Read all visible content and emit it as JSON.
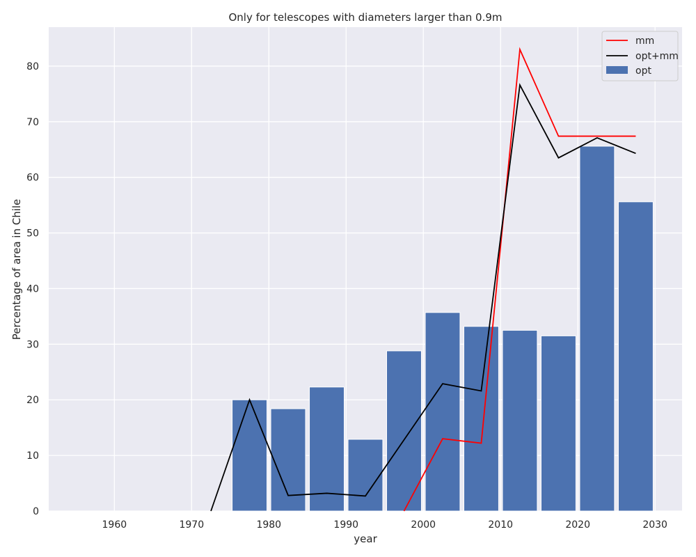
{
  "chart_data": {
    "type": "bar",
    "title": "Only for telescopes with diameters larger than 0.9m",
    "xlabel": "year",
    "ylabel": "Percentage of area in Chile",
    "xlim": [
      1951.5,
      2033.5
    ],
    "ylim": [
      0,
      87
    ],
    "xticks": [
      1960,
      1970,
      1980,
      1990,
      2000,
      2010,
      2020,
      2030
    ],
    "yticks": [
      0,
      10,
      20,
      30,
      40,
      50,
      60,
      70,
      80
    ],
    "grid": true,
    "legend_position": "top-right",
    "bar_width_years": 4.5,
    "bars": {
      "name": "opt",
      "color": "#4c72b0",
      "x": [
        1957.5,
        1962.5,
        1967.5,
        1972.5,
        1977.5,
        1982.5,
        1987.5,
        1992.5,
        1997.5,
        2002.5,
        2007.5,
        2012.5,
        2017.5,
        2022.5,
        2027.5
      ],
      "values": [
        0,
        0,
        0,
        0,
        20.0,
        18.4,
        22.3,
        12.9,
        28.8,
        35.7,
        33.2,
        32.5,
        31.5,
        65.6,
        55.6
      ]
    },
    "series": [
      {
        "name": "mm",
        "color": "#ff0000",
        "x": [
          1997.5,
          2002.5,
          2007.5,
          2012.5,
          2017.5,
          2022.5,
          2027.5
        ],
        "values": [
          0,
          13.0,
          12.2,
          83.0,
          67.4,
          67.4,
          67.4
        ]
      },
      {
        "name": "opt+mm",
        "color": "#000000",
        "x": [
          1972.5,
          1977.5,
          1982.5,
          1987.5,
          1992.5,
          1997.5,
          2002.5,
          2007.5,
          2012.5,
          2017.5,
          2022.5,
          2027.5
        ],
        "values": [
          0,
          20.0,
          2.8,
          3.2,
          2.7,
          12.8,
          22.9,
          21.6,
          76.6,
          63.5,
          67.1,
          64.3
        ]
      }
    ],
    "legend": [
      "mm",
      "opt+mm",
      "opt"
    ]
  }
}
